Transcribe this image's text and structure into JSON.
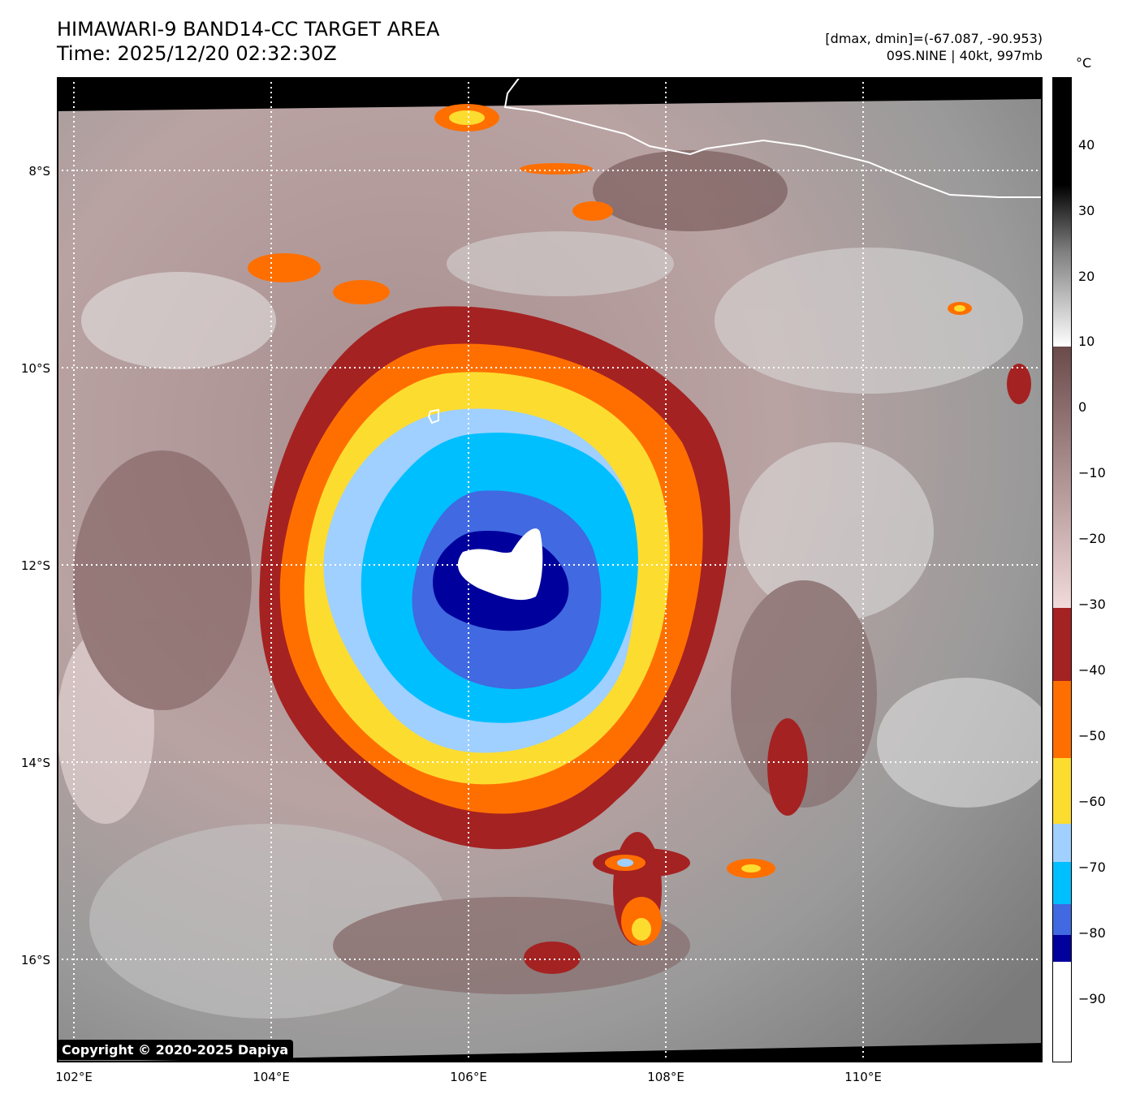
{
  "header": {
    "title_line1": "HIMAWARI-9 BAND14-CC TARGET AREA",
    "title_line2": "Time: 2025/12/20 02:32:30Z",
    "range_text": "[dmax, dmin]=(-67.087, -90.953)",
    "storm_text": "09S.NINE | 40kt, 997mb"
  },
  "map": {
    "lat_labels": [
      "8°S",
      "10°S",
      "12°S",
      "14°S",
      "16°S"
    ],
    "lon_labels": [
      "102°E",
      "104°E",
      "106°E",
      "108°E",
      "110°E"
    ],
    "copyright": "Copyright © 2020-2025 Dapiya"
  },
  "colorbar": {
    "unit": "°C",
    "ticks": [
      "40",
      "30",
      "20",
      "10",
      "0",
      "−10",
      "−20",
      "−30",
      "−40",
      "−50",
      "−60",
      "−70",
      "−80",
      "−90"
    ],
    "colors": {
      "warm_top": "#000000",
      "warm_mid": "#808080",
      "neutral": "#ffffff",
      "brown": "#6b4a4a",
      "pink": "#f2dada",
      "red": "#a52222",
      "orange": "#ff6f00",
      "yellow": "#fddc30",
      "light_blue": "#9fd0ff",
      "cyan": "#00bfff",
      "royal_blue": "#4169e1",
      "navy": "#00009c",
      "cold_white": "#ffffff"
    }
  }
}
